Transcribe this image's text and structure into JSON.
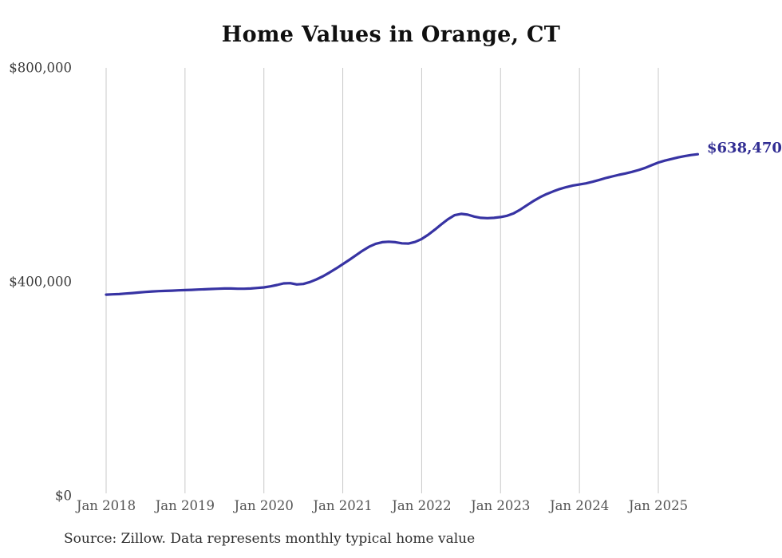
{
  "title": "Home Values in Orange, CT",
  "source_note": "Source: Zillow. Data represents monthly typical home value",
  "latest_value_label": "$638,470",
  "colors": {
    "line": "#3733a3",
    "latest_label": "#312d93",
    "grid": "#c8c8c8",
    "y_tick_label": "#3a3a3a",
    "x_tick_label": "#545454",
    "title": "#101010",
    "source": "#2e2e2e",
    "background": "#ffffff"
  },
  "chart_data": {
    "type": "line",
    "title": "Home Values in Orange, CT",
    "xlabel": "",
    "ylabel": "",
    "ylim": [
      0,
      800000
    ],
    "grid": "vertical-only",
    "legend": "none",
    "y_ticks": [
      {
        "value": 0,
        "label": "$0"
      },
      {
        "value": 400000,
        "label": "$400,000"
      },
      {
        "value": 800000,
        "label": "$800,000"
      }
    ],
    "x_ticks": [
      {
        "month": "2018-01",
        "label": "Jan 2018"
      },
      {
        "month": "2019-01",
        "label": "Jan 2019"
      },
      {
        "month": "2020-01",
        "label": "Jan 2020"
      },
      {
        "month": "2021-01",
        "label": "Jan 2021"
      },
      {
        "month": "2022-01",
        "label": "Jan 2022"
      },
      {
        "month": "2023-01",
        "label": "Jan 2023"
      },
      {
        "month": "2024-01",
        "label": "Jan 2024"
      },
      {
        "month": "2025-01",
        "label": "Jan 2025"
      }
    ],
    "series": [
      {
        "name": "Typical home value (monthly)",
        "interval": "monthly",
        "months": [
          "2018-01",
          "2018-02",
          "2018-03",
          "2018-04",
          "2018-05",
          "2018-06",
          "2018-07",
          "2018-08",
          "2018-09",
          "2018-10",
          "2018-11",
          "2018-12",
          "2019-01",
          "2019-02",
          "2019-03",
          "2019-04",
          "2019-05",
          "2019-06",
          "2019-07",
          "2019-08",
          "2019-09",
          "2019-10",
          "2019-11",
          "2019-12",
          "2020-01",
          "2020-02",
          "2020-03",
          "2020-04",
          "2020-05",
          "2020-06",
          "2020-07",
          "2020-08",
          "2020-09",
          "2020-10",
          "2020-11",
          "2020-12",
          "2021-01",
          "2021-02",
          "2021-03",
          "2021-04",
          "2021-05",
          "2021-06",
          "2021-07",
          "2021-08",
          "2021-09",
          "2021-10",
          "2021-11",
          "2021-12",
          "2022-01",
          "2022-02",
          "2022-03",
          "2022-04",
          "2022-05",
          "2022-06",
          "2022-07",
          "2022-08",
          "2022-09",
          "2022-10",
          "2022-11",
          "2022-12",
          "2023-01",
          "2023-02",
          "2023-03",
          "2023-04",
          "2023-05",
          "2023-06",
          "2023-07",
          "2023-08",
          "2023-09",
          "2023-10",
          "2023-11",
          "2023-12",
          "2024-01",
          "2024-02",
          "2024-03",
          "2024-04",
          "2024-05",
          "2024-06",
          "2024-07",
          "2024-08",
          "2024-09",
          "2024-10",
          "2024-11",
          "2024-12",
          "2025-01",
          "2025-02",
          "2025-03",
          "2025-04",
          "2025-05",
          "2025-06",
          "2025-07"
        ],
        "values": [
          376000,
          376500,
          377000,
          378000,
          379000,
          380000,
          381000,
          382000,
          382500,
          383000,
          383500,
          384000,
          384500,
          385000,
          385500,
          386000,
          386500,
          387000,
          387500,
          387500,
          387000,
          387000,
          387500,
          388500,
          389500,
          391500,
          394000,
          397000,
          397500,
          395000,
          396000,
          399500,
          404500,
          410500,
          417500,
          425000,
          433000,
          441000,
          449500,
          458000,
          465500,
          471000,
          474000,
          475000,
          474000,
          472000,
          471500,
          474500,
          480000,
          488000,
          497500,
          507500,
          517000,
          524500,
          527000,
          525500,
          522000,
          519500,
          519000,
          519500,
          521000,
          523500,
          528000,
          535000,
          543000,
          551000,
          558000,
          564000,
          569000,
          573500,
          577000,
          580000,
          582000,
          584000,
          587000,
          590500,
          594000,
          597000,
          600000,
          602500,
          605500,
          609000,
          613000,
          618000,
          623000,
          626500,
          629500,
          632500,
          635000,
          637000,
          638470
        ]
      }
    ],
    "end_annotation": {
      "text": "$638,470",
      "value": 638470,
      "month": "2025-07"
    }
  }
}
